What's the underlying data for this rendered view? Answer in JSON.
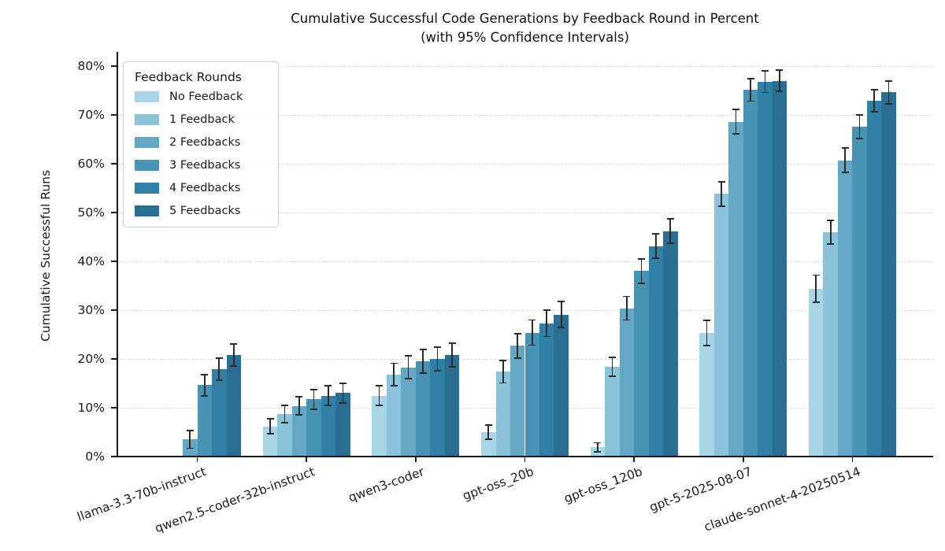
{
  "chart_data": {
    "type": "bar",
    "title": "Cumulative Successful Code Generations by Feedback Round in Percent (with 95% Confidence Intervals)",
    "title_line1": "Cumulative Successful Code Generations by Feedback Round in Percent",
    "title_line2": "(with 95% Confidence Intervals)",
    "ylabel": "Cumulative Successful Runs",
    "xlabel": "",
    "ylim": [
      0,
      82
    ],
    "yticks": [
      0,
      10,
      20,
      30,
      40,
      50,
      60,
      70,
      80
    ],
    "ytick_labels": [
      "0%",
      "10%",
      "20%",
      "30%",
      "40%",
      "50%",
      "60%",
      "70%",
      "80%"
    ],
    "grid": "horizontal-dashed",
    "legend": {
      "title": "Feedback Rounds",
      "position": "upper-left"
    },
    "error_bar_color": "#2b2b2b",
    "categories": [
      "llama-3.3-70b-instruct",
      "qwen2.5-coder-32b-instruct",
      "qwen3-coder",
      "gpt-oss_20b",
      "gpt-oss_120b",
      "gpt-5-2025-08-07",
      "claude-sonnet-4-20250514"
    ],
    "series": [
      {
        "name": "No Feedback",
        "color": "#a9d4e5",
        "values": [
          0.2,
          6.2,
          12.5,
          5.0,
          1.9,
          25.3,
          34.4
        ],
        "ci95": [
          0.0,
          1.5,
          2.0,
          1.4,
          0.9,
          2.6,
          2.8
        ]
      },
      {
        "name": "1 Feedback",
        "color": "#8bc3db",
        "values": [
          0.2,
          8.7,
          16.8,
          17.4,
          18.4,
          53.8,
          46.0
        ],
        "ci95": [
          0.0,
          1.8,
          2.3,
          2.3,
          1.9,
          2.5,
          2.4
        ]
      },
      {
        "name": "2 Feedbacks",
        "color": "#64a7c5",
        "values": [
          3.5,
          10.4,
          18.3,
          22.7,
          30.4,
          68.6,
          60.7
        ],
        "ci95": [
          1.8,
          1.9,
          2.3,
          2.5,
          2.4,
          2.5,
          2.5
        ]
      },
      {
        "name": "3 Feedbacks",
        "color": "#4892b3",
        "values": [
          14.6,
          11.7,
          19.5,
          25.4,
          38.0,
          75.1,
          67.6
        ],
        "ci95": [
          2.2,
          2.0,
          2.4,
          2.6,
          2.5,
          2.3,
          2.4
        ]
      },
      {
        "name": "4 Feedbacks",
        "color": "#3080a6",
        "values": [
          17.9,
          12.5,
          20.0,
          27.3,
          43.1,
          76.8,
          72.9
        ],
        "ci95": [
          2.3,
          2.0,
          2.4,
          2.7,
          2.5,
          2.2,
          2.3
        ]
      },
      {
        "name": "5 Feedbacks",
        "color": "#2b6e94",
        "values": [
          20.8,
          13.0,
          20.8,
          29.1,
          46.2,
          77.0,
          74.6
        ],
        "ci95": [
          2.3,
          2.0,
          2.4,
          2.7,
          2.5,
          2.2,
          2.3
        ]
      }
    ]
  }
}
